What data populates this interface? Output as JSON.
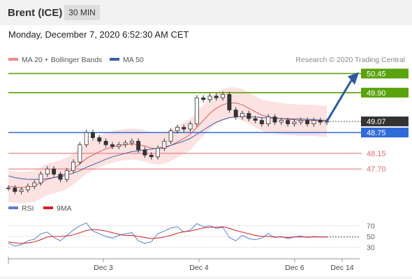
{
  "header": {
    "title": "Brent (ICE)",
    "interval": "30 MIN"
  },
  "datetime": "Monday, December 7, 2020 6:52:30 AM CET",
  "legend": {
    "ma_label": "MA 20 + Bollinger Bands",
    "ma50_label": "MA 50"
  },
  "credit": "Research © 2020 Trading Central",
  "rsi_legend": {
    "rsi_label": "RSI",
    "ma_label": "9MA"
  },
  "colors": {
    "support": "#2f6bd8",
    "resistance_green": "#5aa30c",
    "resistance_red": "#e86a6a",
    "price_box": "#333333",
    "ma20": "#e05a5a",
    "ma50": "#3a5fa8",
    "bands": "#fde2e2",
    "rsi": "#5b7fd6",
    "rsi_ma": "#d22222",
    "arrow": "#2c5aa0"
  },
  "chart_data": {
    "type": "candlestick",
    "instrument": "Brent (ICE)",
    "x_ticks": [
      "Dec 3",
      "Dec 4",
      "Dec 6",
      "Dec 14"
    ],
    "current_price": {
      "value": 49.07,
      "label": "49.07"
    },
    "levels": [
      {
        "value": 50.45,
        "label": "50.45",
        "kind": "target"
      },
      {
        "value": 49.9,
        "label": "49.90",
        "kind": "resistance"
      },
      {
        "value": 48.75,
        "label": "48.75",
        "kind": "support"
      },
      {
        "value": 48.15,
        "label": "48.15",
        "kind": "support2"
      },
      {
        "value": 47.7,
        "label": "47.70",
        "kind": "support3"
      }
    ],
    "price_range": [
      46.9,
      50.6
    ],
    "price_series": [
      47.15,
      47.05,
      47.1,
      47.2,
      47.3,
      47.55,
      47.7,
      47.55,
      47.4,
      47.65,
      47.9,
      48.4,
      48.75,
      48.6,
      48.5,
      48.4,
      48.35,
      48.4,
      48.45,
      48.5,
      48.25,
      48.1,
      48.05,
      48.3,
      48.5,
      48.8,
      48.9,
      48.85,
      49.0,
      49.75,
      49.7,
      49.8,
      49.75,
      49.85,
      49.4,
      49.2,
      49.3,
      49.15,
      49.1,
      49.0,
      49.2,
      49.05,
      49.1,
      49.0,
      49.05,
      49.1,
      49.0,
      49.1,
      49.05,
      49.07
    ],
    "ma20": [
      47.2,
      47.18,
      47.16,
      47.18,
      47.2,
      47.3,
      47.4,
      47.45,
      47.5,
      47.58,
      47.7,
      47.85,
      48.0,
      48.1,
      48.2,
      48.28,
      48.33,
      48.38,
      48.4,
      48.42,
      48.4,
      48.36,
      48.3,
      48.28,
      48.3,
      48.38,
      48.48,
      48.58,
      48.7,
      48.9,
      49.1,
      49.3,
      49.45,
      49.55,
      49.6,
      49.6,
      49.55,
      49.45,
      49.35,
      49.25,
      49.2,
      49.18,
      49.15,
      49.13,
      49.12,
      49.1,
      49.1,
      49.1,
      49.08,
      49.07
    ],
    "ma50": [
      47.5,
      47.45,
      47.42,
      47.4,
      47.4,
      47.4,
      47.42,
      47.45,
      47.48,
      47.52,
      47.58,
      47.65,
      47.75,
      47.82,
      47.9,
      47.98,
      48.05,
      48.1,
      48.15,
      48.2,
      48.22,
      48.25,
      48.27,
      48.3,
      48.33,
      48.38,
      48.44,
      48.5,
      48.58,
      48.7,
      48.82,
      48.94,
      49.05,
      49.12,
      49.18,
      49.2,
      49.22,
      49.2,
      49.2,
      49.18,
      49.17,
      49.16,
      49.15,
      49.15,
      49.14,
      49.14,
      49.13,
      49.12,
      49.11,
      49.1
    ],
    "projection": {
      "from": 49.07,
      "to": 50.45
    },
    "rsi": {
      "y_ticks": [
        70,
        50,
        30
      ],
      "range": [
        15,
        85
      ],
      "values": [
        38,
        32,
        35,
        42,
        45,
        55,
        58,
        48,
        42,
        52,
        62,
        70,
        75,
        60,
        55,
        50,
        47,
        52,
        55,
        57,
        42,
        37,
        40,
        55,
        60,
        66,
        68,
        58,
        62,
        74,
        68,
        70,
        65,
        67,
        48,
        42,
        52,
        46,
        44,
        47,
        55,
        48,
        50,
        46,
        49,
        51,
        48,
        50,
        49,
        49
      ],
      "ma9": [
        40,
        38,
        37,
        38,
        40,
        44,
        49,
        50,
        50,
        51,
        53,
        57,
        61,
        63,
        62,
        60,
        57,
        54,
        52,
        52,
        50,
        48,
        46,
        47,
        49,
        52,
        56,
        59,
        60,
        63,
        66,
        67,
        67,
        68,
        65,
        61,
        58,
        55,
        52,
        50,
        50,
        49,
        49,
        48,
        49,
        49,
        49,
        49,
        49,
        49
      ]
    }
  }
}
